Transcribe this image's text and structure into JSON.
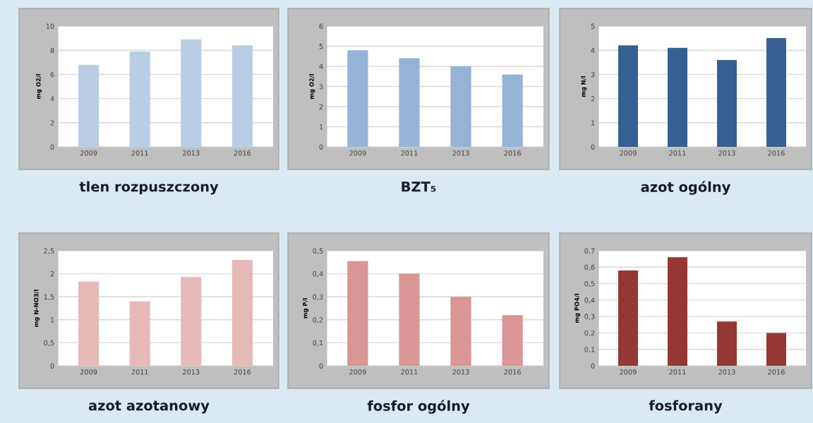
{
  "chart_data": [
    {
      "type": "bar",
      "title": "tlen rozpuszczony",
      "ylabel": "mg O2/l",
      "categories": [
        "2009",
        "2011",
        "2013",
        "2016"
      ],
      "values": [
        6.8,
        7.9,
        8.9,
        8.4
      ],
      "color": "#b9cde5",
      "ylim": [
        0,
        10
      ],
      "yticks": [
        0,
        2,
        4,
        6,
        8,
        10
      ],
      "grid": "y",
      "legend": false
    },
    {
      "type": "bar",
      "title": "BZT₅",
      "ylabel": "mg O2/l",
      "categories": [
        "2009",
        "2011",
        "2013",
        "2016"
      ],
      "values": [
        4.8,
        4.4,
        4.0,
        3.6
      ],
      "color": "#95b3d7",
      "ylim": [
        0,
        6
      ],
      "yticks": [
        0,
        1,
        2,
        3,
        4,
        5,
        6
      ],
      "grid": "y",
      "legend": false
    },
    {
      "type": "bar",
      "title": "azot ogólny",
      "ylabel": "mg N/l",
      "categories": [
        "2009",
        "2011",
        "2013",
        "2016"
      ],
      "values": [
        4.2,
        4.1,
        3.6,
        4.5
      ],
      "color": "#376092",
      "ylim": [
        0,
        5
      ],
      "yticks": [
        0,
        1,
        2,
        3,
        4,
        5
      ],
      "grid": "y",
      "legend": false
    },
    {
      "type": "bar",
      "title": "azot azotanowy",
      "ylabel": "mg N-NO3/l",
      "categories": [
        "2009",
        "2011",
        "2013",
        "2016"
      ],
      "values": [
        1.83,
        1.4,
        1.93,
        2.3
      ],
      "color": "#e6b9b8",
      "ylim": [
        0,
        2.5
      ],
      "yticks": [
        0,
        {
          "value": 0.5,
          "label": "0,5"
        },
        1,
        {
          "value": 1.5,
          "label": "1,5"
        },
        2,
        {
          "value": 2.5,
          "label": "2,5"
        }
      ],
      "grid": "y",
      "legend": false
    },
    {
      "type": "bar",
      "title": "fosfor ogólny",
      "ylabel": "mg P/l",
      "categories": [
        "2009",
        "2011",
        "2013",
        "2016"
      ],
      "values": [
        0.455,
        0.4,
        0.3,
        0.22
      ],
      "color": "#d99694",
      "ylim": [
        0,
        0.5
      ],
      "yticks": [
        0,
        {
          "value": 0.1,
          "label": "0,1"
        },
        {
          "value": 0.2,
          "label": "0,2"
        },
        {
          "value": 0.3,
          "label": "0,3"
        },
        {
          "value": 0.4,
          "label": "0,4"
        },
        {
          "value": 0.5,
          "label": "0,5"
        }
      ],
      "grid": "y",
      "legend": false
    },
    {
      "type": "bar",
      "title": "fosforany",
      "ylabel": "mg PO4/l",
      "categories": [
        "2009",
        "2011",
        "2013",
        "2016"
      ],
      "values": [
        0.58,
        0.66,
        0.27,
        0.2
      ],
      "color": "#953735",
      "ylim": [
        0,
        0.7
      ],
      "yticks": [
        0,
        {
          "value": 0.1,
          "label": "0,1"
        },
        {
          "value": 0.2,
          "label": "0,2"
        },
        {
          "value": 0.3,
          "label": "0,3"
        },
        {
          "value": 0.4,
          "label": "0,4"
        },
        {
          "value": 0.5,
          "label": "0,5"
        },
        {
          "value": 0.6,
          "label": "0,6"
        },
        {
          "value": 0.7,
          "label": "0,7"
        }
      ],
      "grid": "y",
      "legend": false
    }
  ]
}
